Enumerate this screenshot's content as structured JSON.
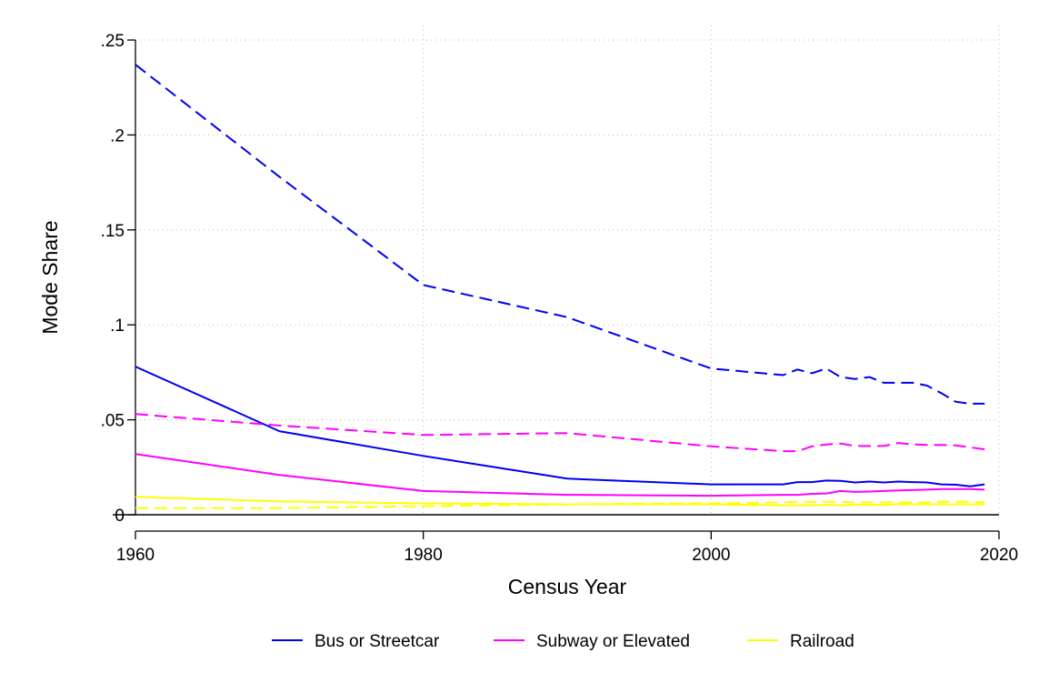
{
  "chart_data": {
    "type": "line",
    "title": "",
    "xlabel": "Census Year",
    "ylabel": "Mode Share",
    "xlim": [
      1960,
      2020
    ],
    "ylim": [
      0,
      0.25
    ],
    "x_ticks": [
      1960,
      1980,
      2000,
      2020
    ],
    "x_tick_labels": [
      "1960",
      "1980",
      "2000",
      "2020"
    ],
    "y_ticks": [
      0,
      0.05,
      0.1,
      0.15,
      0.2,
      0.25
    ],
    "y_tick_labels": [
      "0",
      ".05",
      ".1",
      ".15",
      ".2",
      ".25"
    ],
    "grid": true,
    "legend_position": "bottom",
    "legend": [
      {
        "name": "Bus or Streetcar",
        "color": "#0000ee"
      },
      {
        "name": "Subway or Elevated",
        "color": "#ff00ff"
      },
      {
        "name": "Railroad",
        "color": "#ffff00"
      }
    ],
    "x": [
      1960,
      1970,
      1980,
      1990,
      2000,
      2005,
      2006,
      2007,
      2008,
      2009,
      2010,
      2011,
      2012,
      2013,
      2014,
      2015,
      2016,
      2017,
      2018,
      2019
    ],
    "series": [
      {
        "legend_index": 0,
        "color": "#0000ee",
        "dash": "dashed",
        "values": [
          0.237,
          0.178,
          0.121,
          0.104,
          0.077,
          0.0735,
          0.0765,
          0.0745,
          0.077,
          0.0725,
          0.0715,
          0.0725,
          0.0695,
          0.0695,
          0.0695,
          0.068,
          0.064,
          0.0595,
          0.0585,
          0.0585
        ]
      },
      {
        "legend_index": 0,
        "color": "#0000ee",
        "dash": "solid",
        "values": [
          0.078,
          0.044,
          0.031,
          0.019,
          0.016,
          0.016,
          0.0172,
          0.0172,
          0.018,
          0.0178,
          0.017,
          0.0175,
          0.017,
          0.0175,
          0.0172,
          0.017,
          0.016,
          0.0158,
          0.015,
          0.016
        ]
      },
      {
        "legend_index": 1,
        "color": "#ff00ff",
        "dash": "dashed",
        "values": [
          0.053,
          0.047,
          0.042,
          0.043,
          0.036,
          0.0335,
          0.0335,
          0.036,
          0.037,
          0.0375,
          0.0362,
          0.0362,
          0.0362,
          0.0378,
          0.037,
          0.0368,
          0.0368,
          0.0365,
          0.0355,
          0.0345
        ]
      },
      {
        "legend_index": 1,
        "color": "#ff00ff",
        "dash": "solid",
        "values": [
          0.032,
          0.021,
          0.0125,
          0.0105,
          0.01,
          0.0105,
          0.0105,
          0.011,
          0.0112,
          0.0125,
          0.012,
          0.0122,
          0.0125,
          0.0128,
          0.013,
          0.0132,
          0.0135,
          0.0135,
          0.0135,
          0.0132
        ]
      },
      {
        "legend_index": 2,
        "color": "#ffff00",
        "dash": "dashed",
        "values": [
          0.0035,
          0.0035,
          0.0045,
          0.0055,
          0.006,
          0.0065,
          0.0068,
          0.0068,
          0.0068,
          0.0068,
          0.0065,
          0.0065,
          0.0065,
          0.0065,
          0.0065,
          0.0065,
          0.0068,
          0.0068,
          0.0068,
          0.0065
        ]
      },
      {
        "legend_index": 2,
        "color": "#ffff00",
        "dash": "solid",
        "values": [
          0.0095,
          0.007,
          0.006,
          0.0055,
          0.0055,
          0.005,
          0.005,
          0.005,
          0.0052,
          0.005,
          0.0052,
          0.0052,
          0.0052,
          0.0055,
          0.0055,
          0.0055,
          0.0055,
          0.0055,
          0.0055,
          0.0055
        ]
      }
    ]
  }
}
